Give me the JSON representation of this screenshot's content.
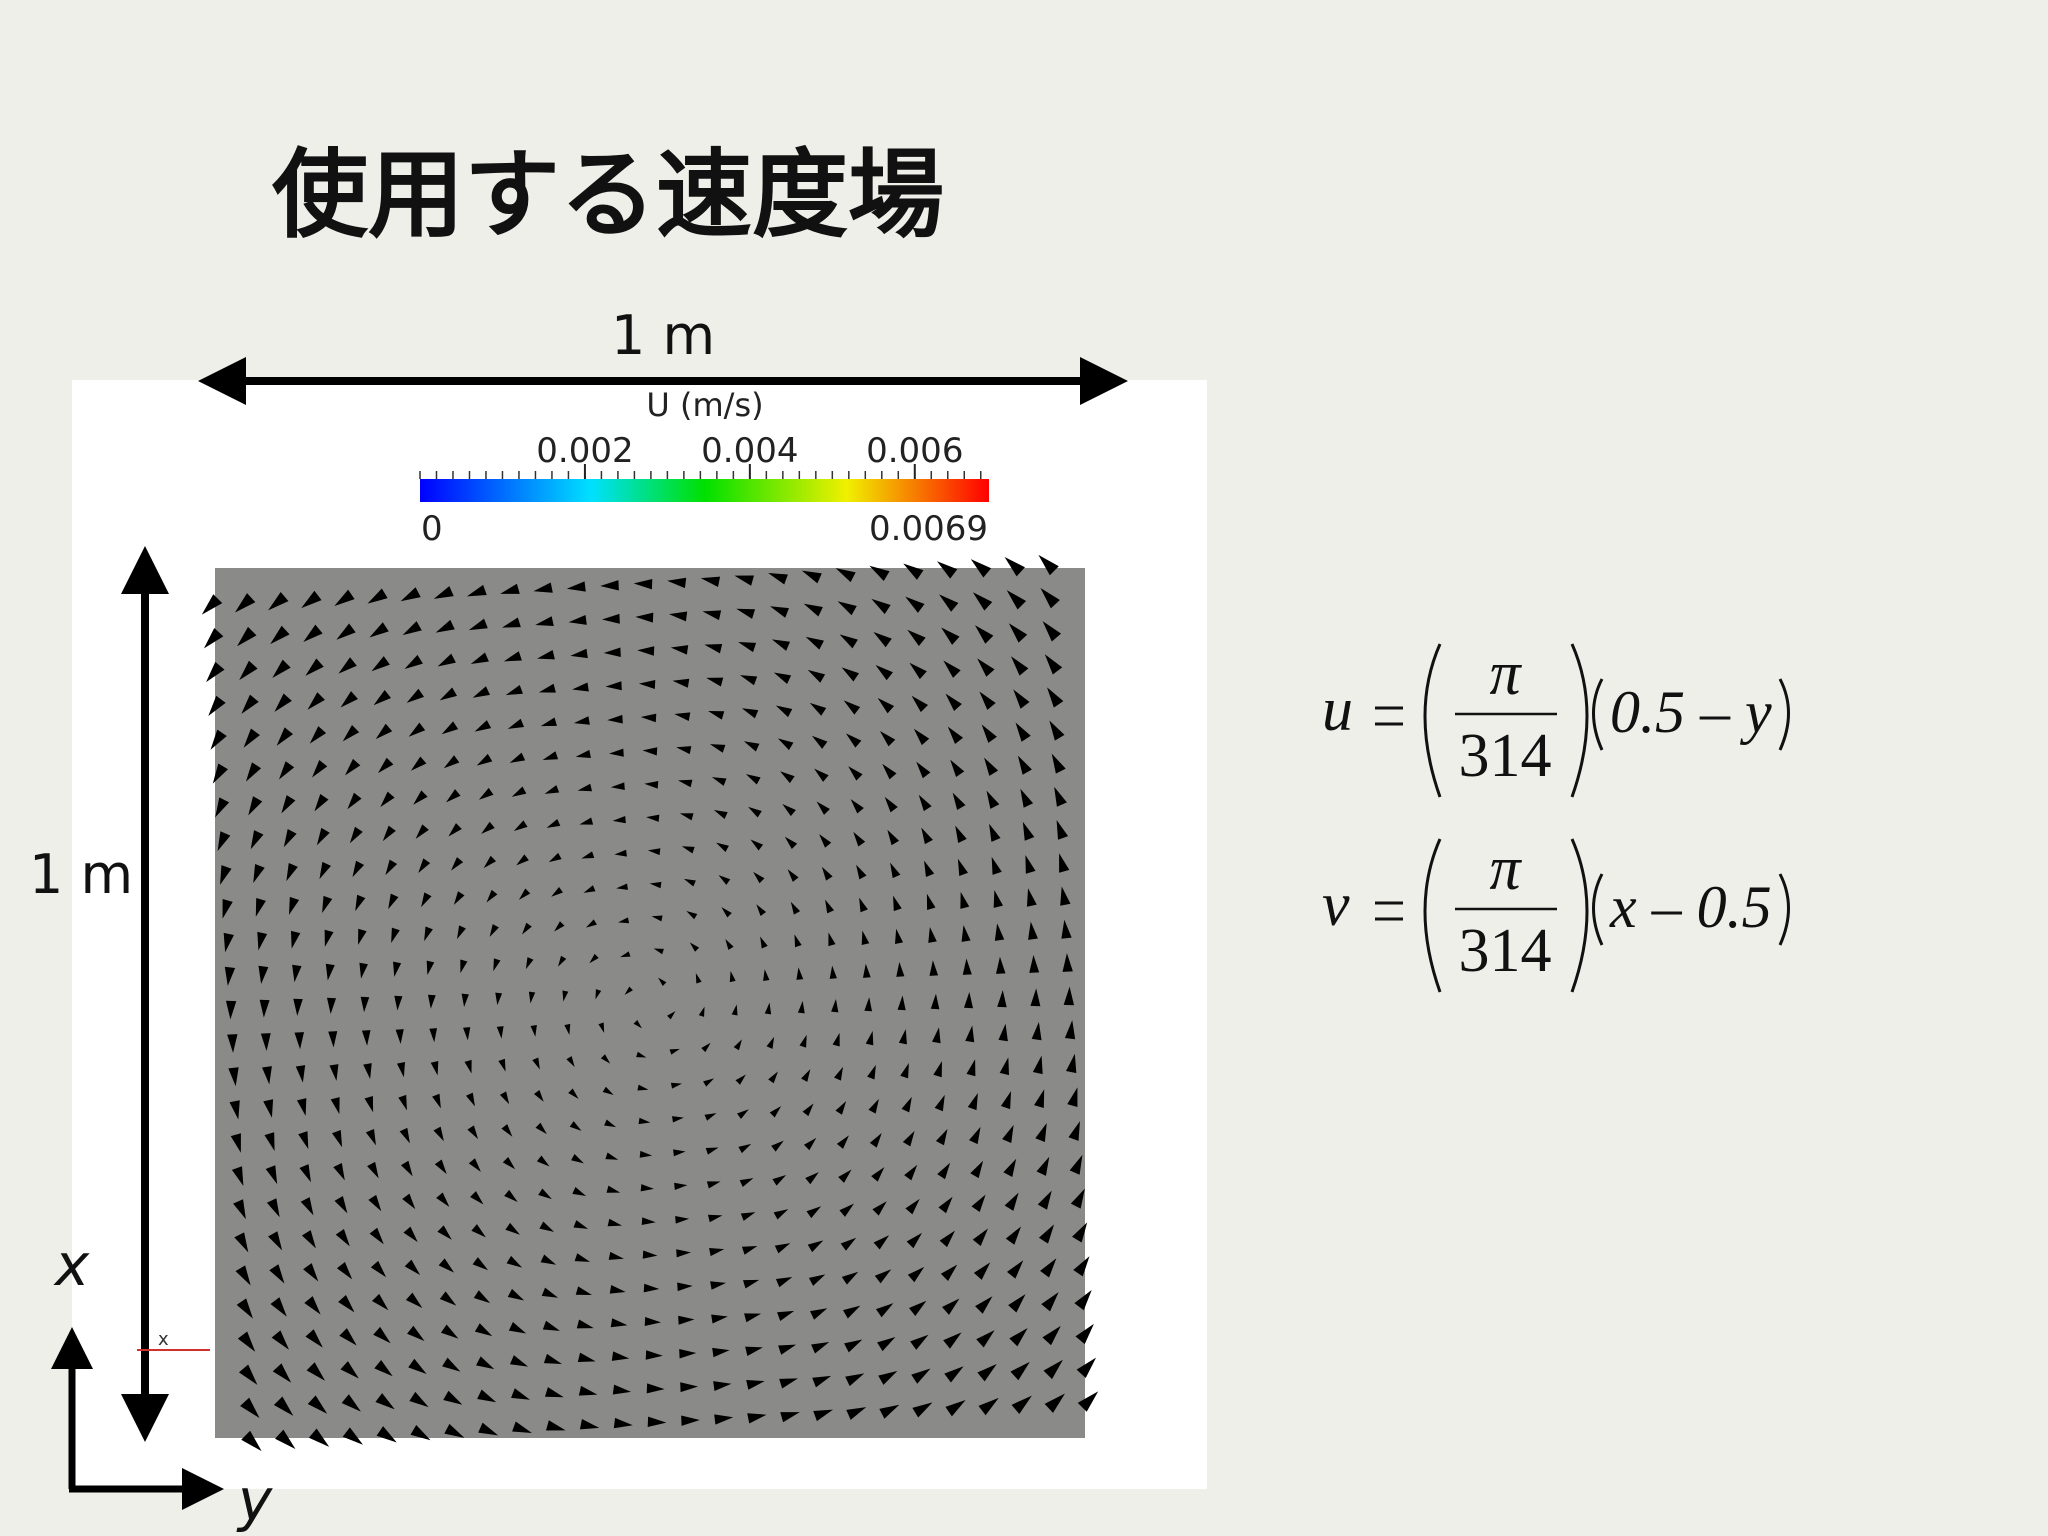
{
  "title": "使用する速度場",
  "figure": {
    "width_label": "1 m",
    "height_label": "1 m",
    "colorbar": {
      "title": "U (m/s)",
      "min": 0,
      "max": 0.0069,
      "ticks": [
        0.002,
        0.004,
        0.006
      ]
    },
    "axes": {
      "x": "x",
      "y": "y",
      "origin_marker": "x"
    }
  },
  "equations": [
    {
      "lhs": "u",
      "numerator": "π",
      "denominator": "314",
      "factor": "0.5 – y"
    },
    {
      "lhs": "v",
      "numerator": "π",
      "denominator": "314",
      "factor": "x – 0.5"
    }
  ]
}
